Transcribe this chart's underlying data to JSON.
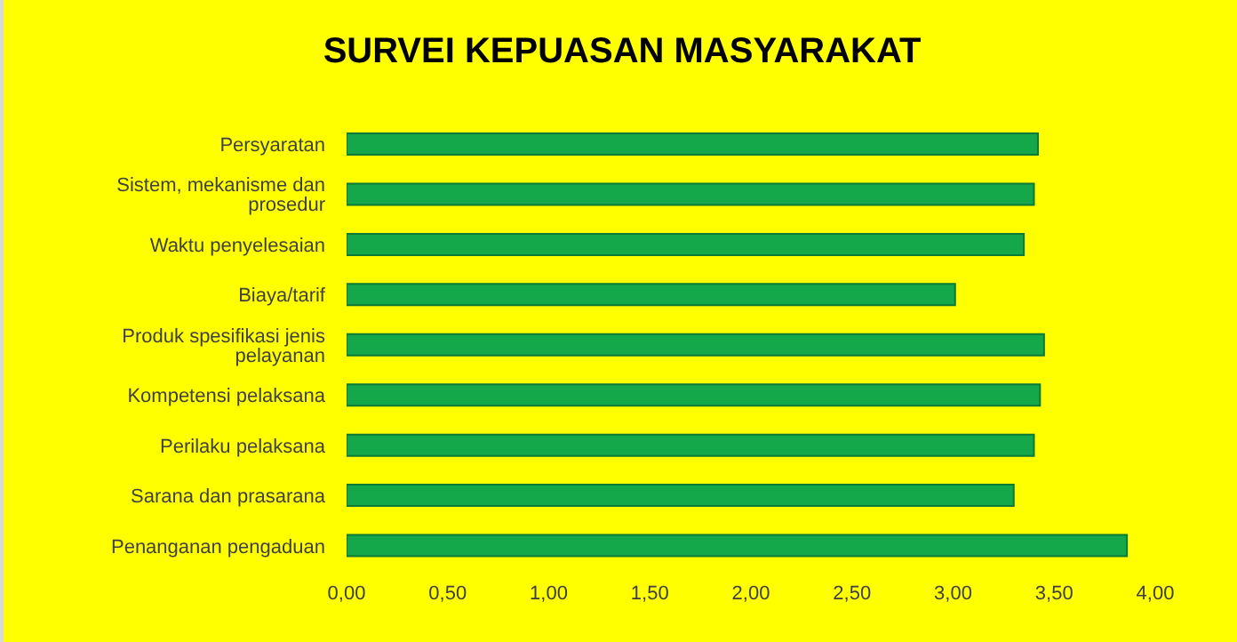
{
  "chart_data": {
    "type": "bar",
    "orientation": "horizontal",
    "title": "SURVEI KEPUASAN MASYARAKAT",
    "categories": [
      "Persyaratan",
      "Sistem, mekanisme dan prosedur",
      "Waktu penyelesaian",
      "Biaya/tarif",
      "Produk spesifikasi jenis pelayanan",
      "Kompetensi pelaksana",
      "Perilaku pelaksana",
      "Sarana dan prasarana",
      "Penanganan pengaduan"
    ],
    "values": [
      3.42,
      3.4,
      3.35,
      3.01,
      3.45,
      3.43,
      3.4,
      3.3,
      3.86
    ],
    "color": "#14a84a",
    "xlim": [
      0,
      4
    ],
    "xticks": [
      {
        "value": 0,
        "label": "0,00"
      },
      {
        "value": 0.5,
        "label": "0,50"
      },
      {
        "value": 1,
        "label": "1,00"
      },
      {
        "value": 1.5,
        "label": "1,50"
      },
      {
        "value": 2,
        "label": "2,00"
      },
      {
        "value": 2.5,
        "label": "2,50"
      },
      {
        "value": 3,
        "label": "3,00"
      },
      {
        "value": 3.5,
        "label": "3,50"
      },
      {
        "value": 4,
        "label": "4,00"
      }
    ],
    "grid": false,
    "legend": false
  }
}
